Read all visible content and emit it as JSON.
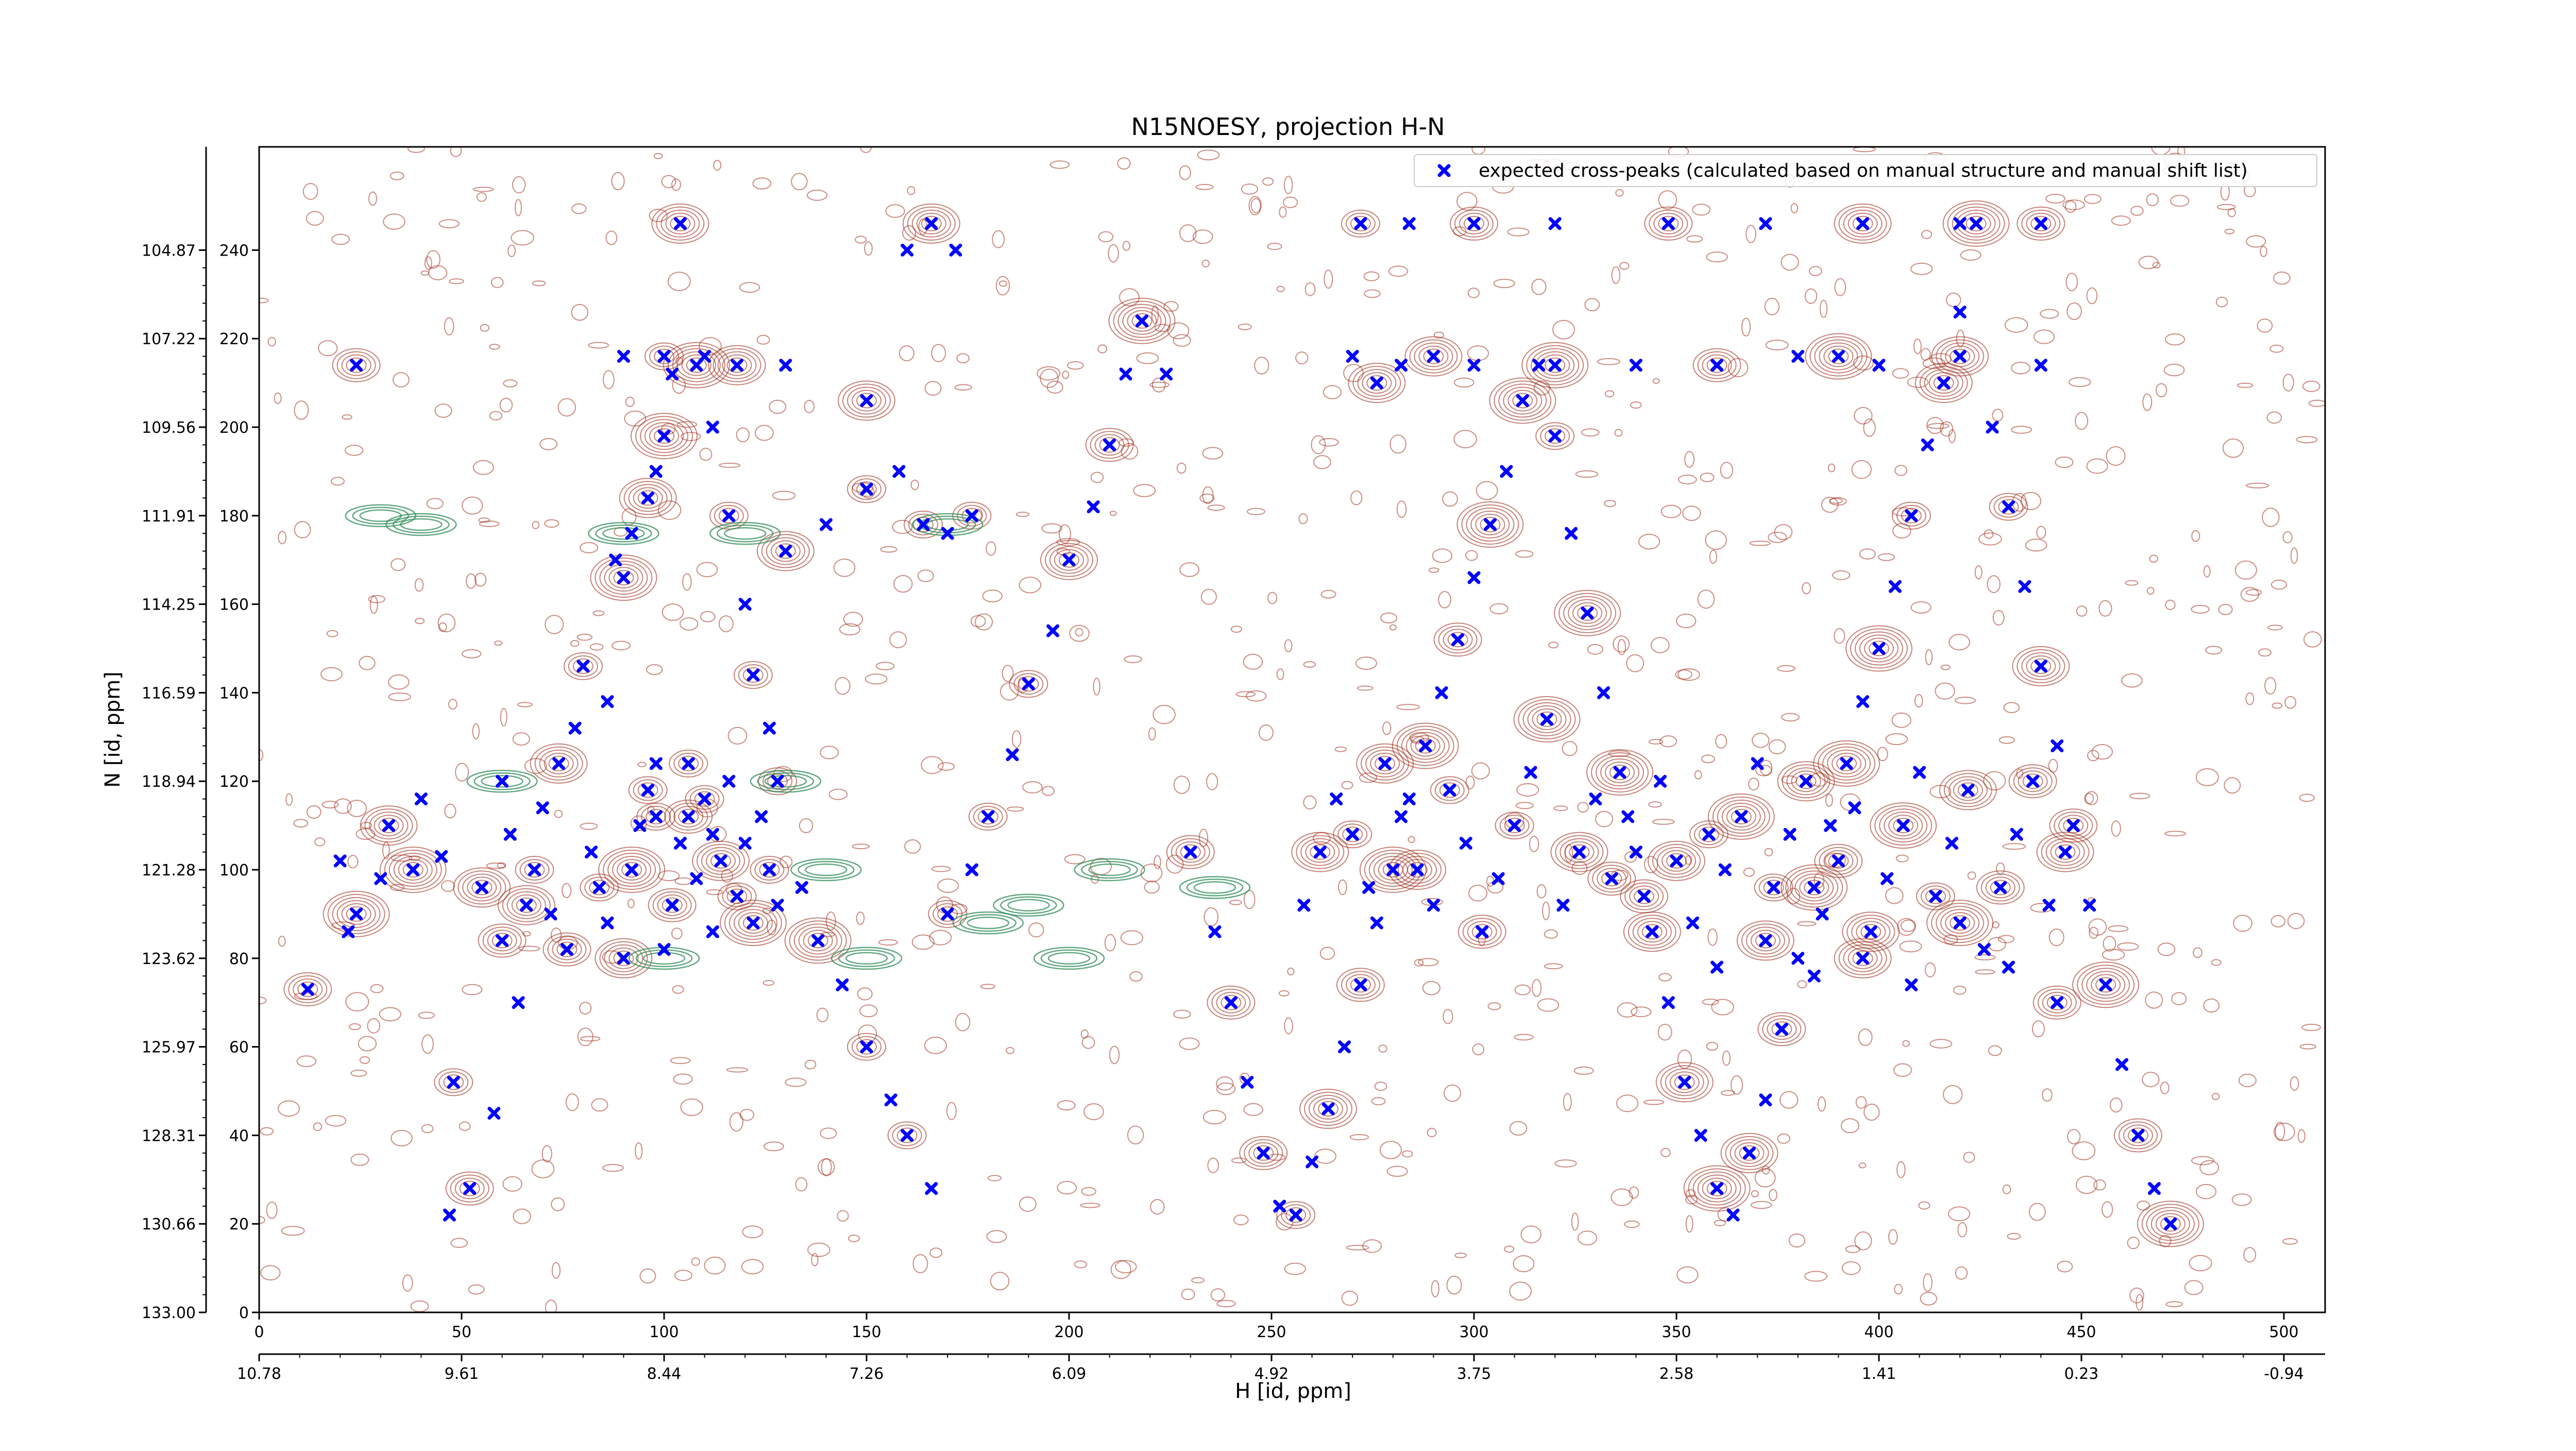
{
  "chart_data": {
    "type": "scatter",
    "title": "N15NOESY, projection H-N",
    "xlabel": "H [id, ppm]",
    "ylabel": "N [id, ppm]",
    "x_index_ticks": [
      "0",
      "50",
      "100",
      "150",
      "200",
      "250",
      "300",
      "350",
      "400",
      "450",
      "500"
    ],
    "x_ppm_ticks": [
      "10.78",
      "9.61",
      "8.44",
      "7.26",
      "6.09",
      "4.92",
      "3.75",
      "2.58",
      "1.41",
      "0.23",
      "-0.94"
    ],
    "y_index_ticks": [
      "0",
      "20",
      "40",
      "60",
      "80",
      "100",
      "120",
      "140",
      "160",
      "180",
      "200",
      "220",
      "240"
    ],
    "y_ppm_ticks": [
      "133.00",
      "130.66",
      "128.31",
      "125.97",
      "123.62",
      "121.28",
      "118.94",
      "116.59",
      "114.25",
      "111.91",
      "109.56",
      "107.22",
      "104.87"
    ],
    "xlim": [
      0,
      511
    ],
    "ylim": [
      0,
      255
    ],
    "legend": {
      "placement": "top-right",
      "entries": [
        "expected cross-peaks (calculated based on manual structure and manual shift list)"
      ]
    },
    "series": [
      {
        "name": "expected cross-peaks (calculated based on manual structure and manual shift list)",
        "marker": "x",
        "color": "#0000ff",
        "points": [
          [
            12,
            73
          ],
          [
            22,
            86
          ],
          [
            24,
            90
          ],
          [
            30,
            98
          ],
          [
            38,
            100
          ],
          [
            45,
            103
          ],
          [
            48,
            52
          ],
          [
            47,
            22
          ],
          [
            52,
            28
          ],
          [
            58,
            45
          ],
          [
            60,
            84
          ],
          [
            64,
            70
          ],
          [
            66,
            92
          ],
          [
            70,
            114
          ],
          [
            74,
            124
          ],
          [
            78,
            132
          ],
          [
            80,
            146
          ],
          [
            86,
            138
          ],
          [
            90,
            166
          ],
          [
            92,
            176
          ],
          [
            96,
            184
          ],
          [
            98,
            190
          ],
          [
            100,
            198
          ],
          [
            102,
            212
          ],
          [
            104,
            246
          ],
          [
            88,
            170
          ],
          [
            108,
            214
          ],
          [
            112,
            200
          ],
          [
            116,
            180
          ],
          [
            120,
            160
          ],
          [
            122,
            144
          ],
          [
            126,
            132
          ],
          [
            128,
            120
          ],
          [
            134,
            96
          ],
          [
            138,
            84
          ],
          [
            144,
            74
          ],
          [
            150,
            60
          ],
          [
            156,
            48
          ],
          [
            160,
            40
          ],
          [
            166,
            28
          ],
          [
            170,
            90
          ],
          [
            176,
            100
          ],
          [
            180,
            112
          ],
          [
            186,
            126
          ],
          [
            190,
            142
          ],
          [
            196,
            154
          ],
          [
            200,
            170
          ],
          [
            206,
            182
          ],
          [
            210,
            196
          ],
          [
            214,
            212
          ],
          [
            218,
            224
          ],
          [
            224,
            212
          ],
          [
            230,
            104
          ],
          [
            236,
            86
          ],
          [
            240,
            70
          ],
          [
            244,
            52
          ],
          [
            248,
            36
          ],
          [
            252,
            24
          ],
          [
            256,
            22
          ],
          [
            260,
            34
          ],
          [
            264,
            46
          ],
          [
            268,
            60
          ],
          [
            272,
            74
          ],
          [
            276,
            88
          ],
          [
            280,
            100
          ],
          [
            284,
            116
          ],
          [
            288,
            128
          ],
          [
            292,
            140
          ],
          [
            296,
            152
          ],
          [
            300,
            166
          ],
          [
            304,
            178
          ],
          [
            308,
            190
          ],
          [
            312,
            206
          ],
          [
            316,
            214
          ],
          [
            320,
            198
          ],
          [
            324,
            176
          ],
          [
            328,
            158
          ],
          [
            332,
            140
          ],
          [
            336,
            122
          ],
          [
            340,
            104
          ],
          [
            344,
            86
          ],
          [
            348,
            70
          ],
          [
            352,
            52
          ],
          [
            356,
            40
          ],
          [
            360,
            28
          ],
          [
            364,
            22
          ],
          [
            368,
            36
          ],
          [
            372,
            48
          ],
          [
            376,
            64
          ],
          [
            380,
            80
          ],
          [
            384,
            96
          ],
          [
            388,
            110
          ],
          [
            392,
            124
          ],
          [
            396,
            138
          ],
          [
            400,
            150
          ],
          [
            404,
            164
          ],
          [
            408,
            180
          ],
          [
            412,
            196
          ],
          [
            416,
            210
          ],
          [
            420,
            226
          ],
          [
            424,
            246
          ],
          [
            428,
            200
          ],
          [
            432,
            182
          ],
          [
            436,
            164
          ],
          [
            440,
            146
          ],
          [
            444,
            128
          ],
          [
            448,
            110
          ],
          [
            452,
            92
          ],
          [
            456,
            74
          ],
          [
            460,
            56
          ],
          [
            464,
            40
          ],
          [
            468,
            28
          ],
          [
            472,
            20
          ],
          [
            82,
            104
          ],
          [
            84,
            96
          ],
          [
            86,
            88
          ],
          [
            90,
            80
          ],
          [
            94,
            110
          ],
          [
            96,
            118
          ],
          [
            98,
            124
          ],
          [
            102,
            92
          ],
          [
            104,
            106
          ],
          [
            106,
            112
          ],
          [
            108,
            98
          ],
          [
            110,
            116
          ],
          [
            112,
            86
          ],
          [
            114,
            102
          ],
          [
            116,
            120
          ],
          [
            118,
            94
          ],
          [
            120,
            106
          ],
          [
            122,
            88
          ],
          [
            124,
            112
          ],
          [
            126,
            100
          ],
          [
            128,
            92
          ],
          [
            92,
            100
          ],
          [
            100,
            82
          ],
          [
            106,
            124
          ],
          [
            112,
            108
          ],
          [
            98,
            112
          ],
          [
            258,
            92
          ],
          [
            262,
            104
          ],
          [
            266,
            116
          ],
          [
            270,
            108
          ],
          [
            274,
            96
          ],
          [
            278,
            124
          ],
          [
            282,
            112
          ],
          [
            286,
            100
          ],
          [
            290,
            92
          ],
          [
            294,
            118
          ],
          [
            298,
            106
          ],
          [
            302,
            86
          ],
          [
            306,
            98
          ],
          [
            310,
            110
          ],
          [
            314,
            122
          ],
          [
            318,
            134
          ],
          [
            322,
            92
          ],
          [
            326,
            104
          ],
          [
            330,
            116
          ],
          [
            334,
            98
          ],
          [
            338,
            112
          ],
          [
            342,
            94
          ],
          [
            346,
            120
          ],
          [
            350,
            102
          ],
          [
            354,
            88
          ],
          [
            358,
            108
          ],
          [
            362,
            100
          ],
          [
            366,
            112
          ],
          [
            370,
            124
          ],
          [
            374,
            96
          ],
          [
            378,
            108
          ],
          [
            382,
            120
          ],
          [
            386,
            90
          ],
          [
            390,
            102
          ],
          [
            394,
            114
          ],
          [
            398,
            86
          ],
          [
            402,
            98
          ],
          [
            406,
            110
          ],
          [
            410,
            122
          ],
          [
            414,
            94
          ],
          [
            418,
            106
          ],
          [
            422,
            118
          ],
          [
            426,
            82
          ],
          [
            430,
            96
          ],
          [
            434,
            108
          ],
          [
            438,
            120
          ],
          [
            442,
            92
          ],
          [
            446,
            104
          ],
          [
            360,
            78
          ],
          [
            372,
            84
          ],
          [
            384,
            76
          ],
          [
            396,
            80
          ],
          [
            408,
            74
          ],
          [
            420,
            88
          ],
          [
            432,
            78
          ],
          [
            444,
            70
          ],
          [
            20,
            102
          ],
          [
            32,
            110
          ],
          [
            40,
            116
          ],
          [
            55,
            96
          ],
          [
            62,
            108
          ],
          [
            68,
            100
          ],
          [
            72,
            90
          ],
          [
            76,
            82
          ],
          [
            60,
            120
          ],
          [
            130,
            172
          ],
          [
            140,
            178
          ],
          [
            150,
            186
          ],
          [
            158,
            190
          ],
          [
            164,
            178
          ],
          [
            170,
            176
          ],
          [
            176,
            180
          ],
          [
            160,
            240
          ],
          [
            166,
            246
          ],
          [
            172,
            240
          ],
          [
            24,
            214
          ],
          [
            90,
            216
          ],
          [
            100,
            216
          ],
          [
            110,
            216
          ],
          [
            118,
            214
          ],
          [
            130,
            214
          ],
          [
            150,
            206
          ],
          [
            270,
            216
          ],
          [
            276,
            210
          ],
          [
            282,
            214
          ],
          [
            290,
            216
          ],
          [
            300,
            214
          ],
          [
            320,
            214
          ],
          [
            340,
            214
          ],
          [
            360,
            214
          ],
          [
            380,
            216
          ],
          [
            390,
            216
          ],
          [
            400,
            214
          ],
          [
            420,
            216
          ],
          [
            440,
            214
          ],
          [
            272,
            246
          ],
          [
            284,
            246
          ],
          [
            300,
            246
          ],
          [
            320,
            246
          ],
          [
            348,
            246
          ],
          [
            372,
            246
          ],
          [
            396,
            246
          ],
          [
            420,
            246
          ],
          [
            440,
            246
          ]
        ]
      }
    ],
    "contours": [
      {
        "name": "positive",
        "color": "#a0301e"
      },
      {
        "name": "negative",
        "color": "#2e8b57"
      }
    ]
  }
}
